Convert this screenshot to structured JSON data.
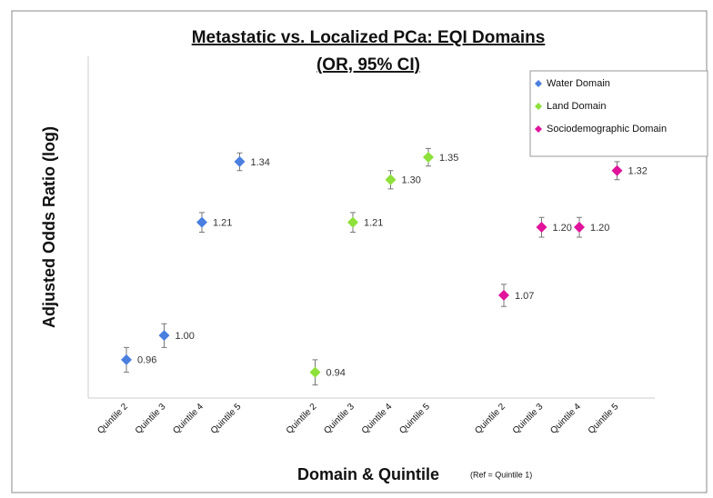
{
  "chart_data": {
    "type": "scatter",
    "title": "Metastatic vs. Localized PCa: EQI Domains",
    "subtitle": "(OR, 95% CI)",
    "y_label": "Adjusted Odds Ratio (log)",
    "x_label": "Domain & Quintile",
    "note": "(Ref = Quintile 1)",
    "yscale": "log",
    "ylim": [
      0.9,
      1.6
    ],
    "legend": "top-right",
    "categories": [
      "Quintile 2",
      "Quintile 3",
      "Quintile 4",
      "Quintile 5",
      null,
      "Quintile 2",
      "Quintile 3",
      "Quintile 4",
      "Quintile 5",
      null,
      "Quintile 2",
      "Quintile 3",
      "Quintile 4",
      "Quintile 5"
    ],
    "series": [
      {
        "name": "Water Domain",
        "color": "#4a7fe0",
        "values": [
          0.96,
          1.0,
          1.21,
          1.34,
          null,
          null,
          null,
          null,
          null,
          null,
          null,
          null,
          null,
          null
        ],
        "value_labels": [
          "0.96",
          "1.00",
          "1.21",
          "1.34",
          null,
          null,
          null,
          null,
          null,
          null,
          null,
          null,
          null,
          null
        ],
        "lower": [
          0.94,
          0.98,
          1.19,
          1.32,
          null,
          null,
          null,
          null,
          null,
          null,
          null,
          null,
          null,
          null
        ],
        "upper": [
          0.98,
          1.02,
          1.23,
          1.36,
          null,
          null,
          null,
          null,
          null,
          null,
          null,
          null,
          null,
          null
        ]
      },
      {
        "name": "Land Domain",
        "color": "#8ee03a",
        "values": [
          null,
          null,
          null,
          null,
          null,
          0.94,
          1.21,
          1.3,
          1.35,
          null,
          null,
          null,
          null,
          null
        ],
        "value_labels": [
          null,
          null,
          null,
          null,
          null,
          "0.94",
          "1.21",
          "1.30",
          "1.35",
          null,
          null,
          null,
          null,
          null
        ],
        "lower": [
          null,
          null,
          null,
          null,
          null,
          0.92,
          1.19,
          1.28,
          1.33,
          null,
          null,
          null,
          null,
          null
        ],
        "upper": [
          null,
          null,
          null,
          null,
          null,
          0.96,
          1.23,
          1.32,
          1.37,
          null,
          null,
          null,
          null,
          null
        ]
      },
      {
        "name": "Sociodemographic Domain",
        "color": "#e0139a",
        "values": [
          null,
          null,
          null,
          null,
          null,
          null,
          null,
          null,
          null,
          null,
          1.07,
          1.2,
          1.2,
          1.32
        ],
        "value_labels": [
          null,
          null,
          null,
          null,
          null,
          null,
          null,
          null,
          null,
          null,
          "1.07",
          "1.20",
          "1.20",
          "1.32"
        ],
        "lower": [
          null,
          null,
          null,
          null,
          null,
          null,
          null,
          null,
          null,
          null,
          1.05,
          1.18,
          1.18,
          1.3
        ],
        "upper": [
          null,
          null,
          null,
          null,
          null,
          null,
          null,
          null,
          null,
          null,
          1.09,
          1.22,
          1.22,
          1.34
        ]
      }
    ]
  }
}
